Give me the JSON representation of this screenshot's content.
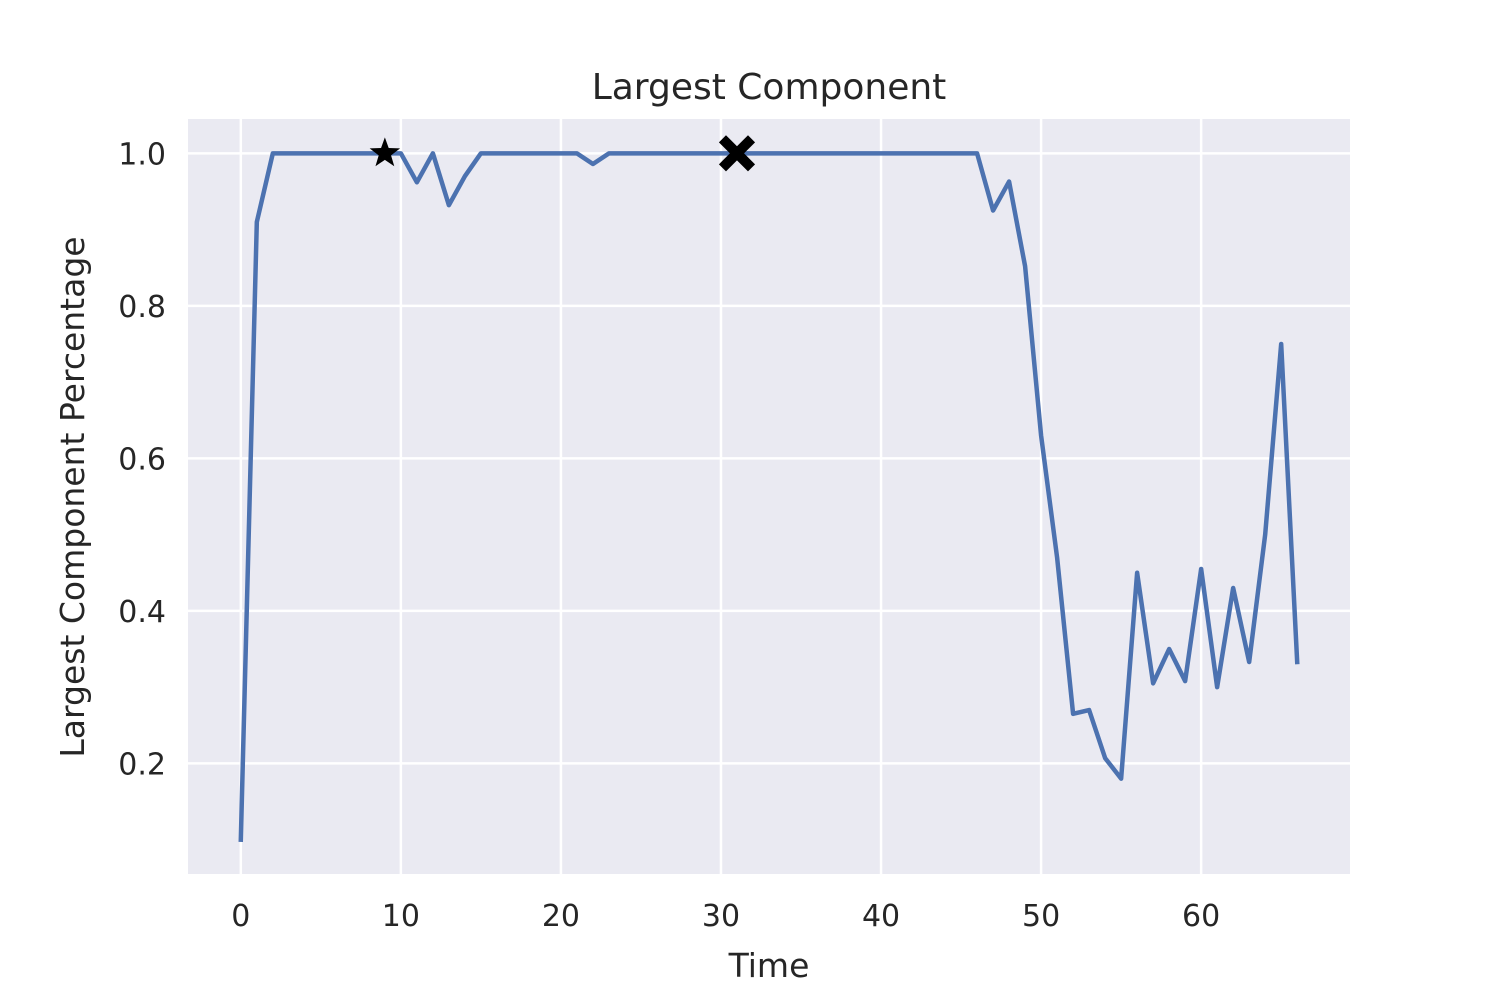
{
  "chart_data": {
    "type": "line",
    "title": "Largest Component",
    "xlabel": "Time",
    "ylabel": "Largest Component Percentage",
    "xlim": [
      -3.3,
      69.3
    ],
    "ylim": [
      0.055,
      1.045
    ],
    "xticks": [
      0,
      10,
      20,
      30,
      40,
      50,
      60
    ],
    "yticks": [
      0.2,
      0.4,
      0.6,
      0.8,
      1.0
    ],
    "grid": true,
    "series": [
      {
        "name": "Largest Component Percentage",
        "color": "#4c72b0",
        "x": [
          0,
          1,
          2,
          3,
          4,
          5,
          6,
          7,
          8,
          9,
          10,
          11,
          12,
          13,
          14,
          15,
          16,
          17,
          18,
          19,
          20,
          21,
          22,
          23,
          24,
          25,
          26,
          27,
          28,
          29,
          30,
          31,
          32,
          33,
          34,
          35,
          36,
          37,
          38,
          39,
          40,
          41,
          42,
          43,
          44,
          45,
          46,
          47,
          48,
          49,
          50,
          51,
          52,
          53,
          54,
          55,
          56,
          57,
          58,
          59,
          60,
          61,
          62,
          63,
          64,
          65,
          66
        ],
        "y": [
          0.1,
          0.91,
          1.0,
          1.0,
          1.0,
          1.0,
          1.0,
          1.0,
          1.0,
          1.0,
          1.0,
          0.962,
          1.0,
          0.932,
          0.97,
          1.0,
          1.0,
          1.0,
          1.0,
          1.0,
          1.0,
          1.0,
          0.986,
          1.0,
          1.0,
          1.0,
          1.0,
          1.0,
          1.0,
          1.0,
          1.0,
          1.0,
          1.0,
          1.0,
          1.0,
          1.0,
          1.0,
          1.0,
          1.0,
          1.0,
          1.0,
          1.0,
          1.0,
          1.0,
          1.0,
          1.0,
          1.0,
          0.925,
          0.963,
          0.852,
          0.63,
          0.47,
          0.265,
          0.27,
          0.207,
          0.18,
          0.45,
          0.305,
          0.35,
          0.308,
          0.455,
          0.3,
          0.43,
          0.333,
          0.5,
          0.75,
          0.333
        ]
      }
    ],
    "markers": [
      {
        "name": "star-marker",
        "shape": "star",
        "x": 9,
        "y": 1.0,
        "color": "#000000"
      },
      {
        "name": "x-marker",
        "shape": "x",
        "x": 31,
        "y": 1.0,
        "color": "#000000"
      }
    ],
    "colors": {
      "plot_background": "#eaeaf2",
      "grid": "#ffffff",
      "text": "#262626"
    }
  }
}
